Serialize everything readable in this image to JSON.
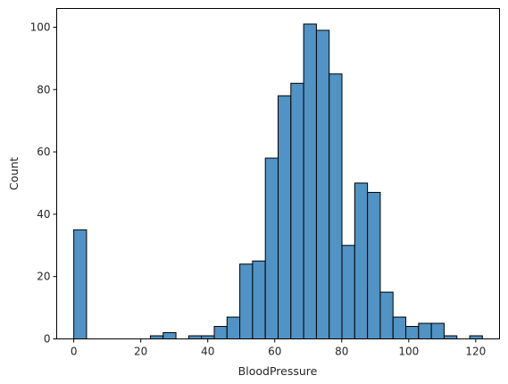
{
  "chart_data": {
    "type": "bar",
    "subtype": "histogram",
    "xlabel": "BloodPressure",
    "ylabel": "Count",
    "xlim": [
      -5.1,
      127.1
    ],
    "ylim": [
      0,
      106
    ],
    "xticks": [
      0,
      20,
      40,
      60,
      80,
      100,
      120
    ],
    "yticks": [
      0,
      20,
      40,
      60,
      80,
      100
    ],
    "bin_width": 3.8125,
    "bin_start": 0,
    "bins": [
      {
        "x0": 0.0,
        "x1": 3.8125,
        "count": 35
      },
      {
        "x0": 3.8125,
        "x1": 7.625,
        "count": 0
      },
      {
        "x0": 7.625,
        "x1": 11.4375,
        "count": 0
      },
      {
        "x0": 11.4375,
        "x1": 15.25,
        "count": 0
      },
      {
        "x0": 15.25,
        "x1": 19.0625,
        "count": 0
      },
      {
        "x0": 19.0625,
        "x1": 22.875,
        "count": 0
      },
      {
        "x0": 22.875,
        "x1": 26.6875,
        "count": 1
      },
      {
        "x0": 26.6875,
        "x1": 30.5,
        "count": 2
      },
      {
        "x0": 30.5,
        "x1": 34.3125,
        "count": 0
      },
      {
        "x0": 34.3125,
        "x1": 38.125,
        "count": 1
      },
      {
        "x0": 38.125,
        "x1": 41.9375,
        "count": 1
      },
      {
        "x0": 41.9375,
        "x1": 45.75,
        "count": 4
      },
      {
        "x0": 45.75,
        "x1": 49.5625,
        "count": 7
      },
      {
        "x0": 49.5625,
        "x1": 53.375,
        "count": 24
      },
      {
        "x0": 53.375,
        "x1": 57.1875,
        "count": 25
      },
      {
        "x0": 57.1875,
        "x1": 61.0,
        "count": 58
      },
      {
        "x0": 61.0,
        "x1": 64.8125,
        "count": 78
      },
      {
        "x0": 64.8125,
        "x1": 68.625,
        "count": 82
      },
      {
        "x0": 68.625,
        "x1": 72.4375,
        "count": 101
      },
      {
        "x0": 72.4375,
        "x1": 76.25,
        "count": 99
      },
      {
        "x0": 76.25,
        "x1": 80.0625,
        "count": 85
      },
      {
        "x0": 80.0625,
        "x1": 83.875,
        "count": 30
      },
      {
        "x0": 83.875,
        "x1": 87.6875,
        "count": 50
      },
      {
        "x0": 87.6875,
        "x1": 91.5,
        "count": 47
      },
      {
        "x0": 91.5,
        "x1": 95.3125,
        "count": 15
      },
      {
        "x0": 95.3125,
        "x1": 99.125,
        "count": 7
      },
      {
        "x0": 99.125,
        "x1": 102.9375,
        "count": 4
      },
      {
        "x0": 102.9375,
        "x1": 106.75,
        "count": 5
      },
      {
        "x0": 106.75,
        "x1": 110.5625,
        "count": 5
      },
      {
        "x0": 110.5625,
        "x1": 114.375,
        "count": 1
      },
      {
        "x0": 114.375,
        "x1": 118.1875,
        "count": 0
      },
      {
        "x0": 118.1875,
        "x1": 122.0,
        "count": 1
      }
    ],
    "bar_color": "#5093c4",
    "edge_color": "#000000",
    "grid": false,
    "legend": "none"
  }
}
